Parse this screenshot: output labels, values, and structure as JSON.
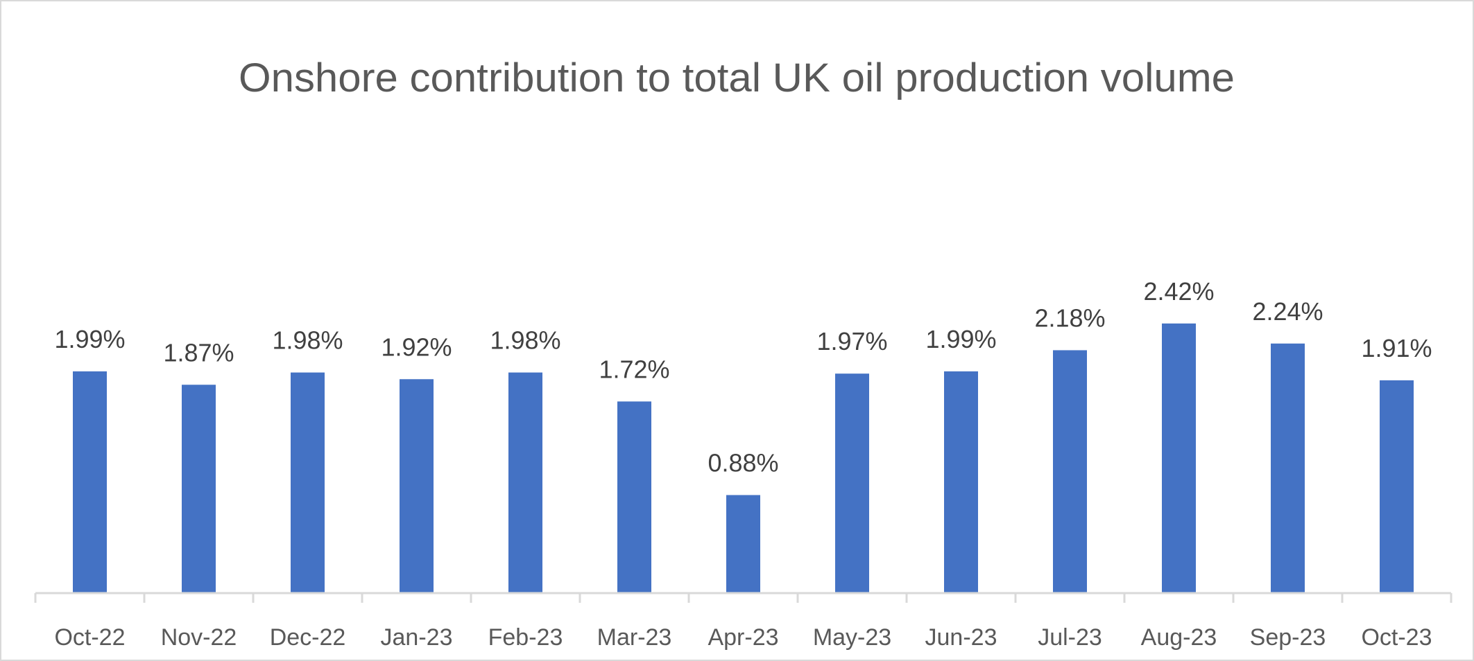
{
  "chart_data": {
    "type": "bar",
    "title": "Onshore contribution to total UK oil production volume",
    "categories": [
      "Oct-22",
      "Nov-22",
      "Dec-22",
      "Jan-23",
      "Feb-23",
      "Mar-23",
      "Apr-23",
      "May-23",
      "Jun-23",
      "Jul-23",
      "Aug-23",
      "Sep-23",
      "Oct-23"
    ],
    "values": [
      1.99,
      1.87,
      1.98,
      1.92,
      1.98,
      1.72,
      0.88,
      1.97,
      1.99,
      2.18,
      2.42,
      2.24,
      1.91
    ],
    "data_labels": [
      "1.99%",
      "1.87%",
      "1.98%",
      "1.92%",
      "1.98%",
      "1.72%",
      "0.88%",
      "1.97%",
      "1.99%",
      "2.18%",
      "2.42%",
      "2.24%",
      "1.91%"
    ],
    "xlabel": "",
    "ylabel": "",
    "ylim": [
      0,
      3
    ],
    "value_unit": "%",
    "grid": false,
    "legend": "none",
    "colors": {
      "bar": "#4472C4",
      "title": "#595959",
      "label": "#404040",
      "axis": "#D9D9D9",
      "border": "#D9D9D9"
    }
  }
}
